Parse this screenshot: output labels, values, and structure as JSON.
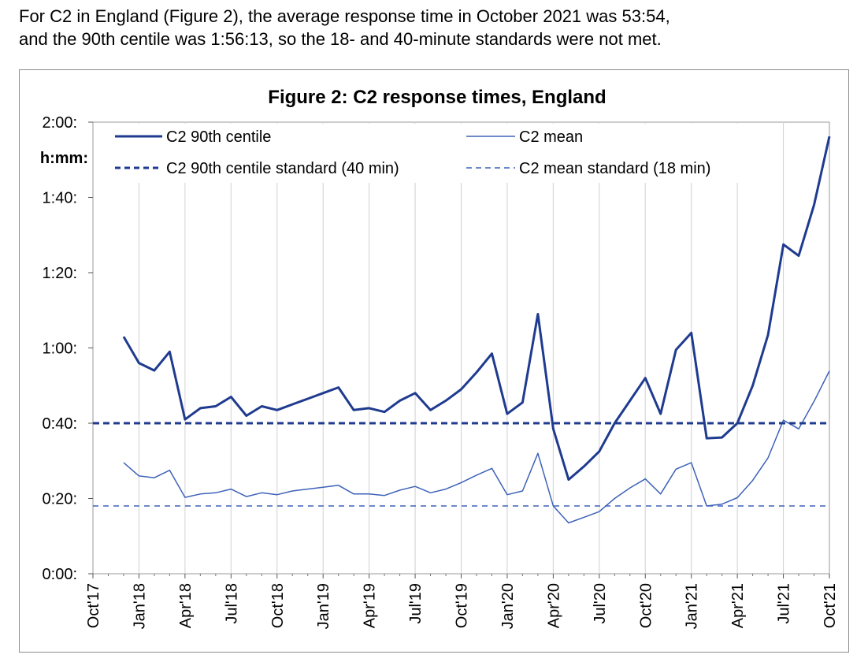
{
  "intro": {
    "line1": "For C2 in England (Figure 2), the average response time in October 2021 was 53:54,",
    "line2": "and the 90th centile was 1:56:13, so the 18- and 40-minute standards were not met."
  },
  "colors": {
    "dark": "#1f3b8f",
    "light": "#3d62b8",
    "grid": "#d0d0d0"
  },
  "chart_data": {
    "type": "line",
    "title": "Figure 2: C2 response times, England",
    "ylabel": "h:mm:",
    "ylim": [
      0,
      120
    ],
    "y_ticks": [
      0,
      20,
      40,
      60,
      80,
      100,
      120
    ],
    "y_tick_labels": [
      "0:00:",
      "0:20:",
      "0:40:",
      "1:00:",
      "1:20:",
      "1:40:",
      "2:00:"
    ],
    "x_tick_labels": [
      "Oct'17",
      "Jan'18",
      "Apr'18",
      "Jul'18",
      "Oct'18",
      "Jan'19",
      "Apr'19",
      "Jul'19",
      "Oct'19",
      "Jan'20",
      "Apr'20",
      "Jul'20",
      "Oct'20",
      "Jan'21",
      "Apr'21",
      "Jul'21",
      "Oct'21"
    ],
    "x_count": 49,
    "grid": "vertical",
    "series": [
      {
        "name": "C2 90th centile",
        "style": "thick-solid",
        "values": [
          null,
          null,
          63,
          56,
          54,
          59,
          41,
          44,
          44.5,
          47,
          42,
          44.5,
          43.5,
          45,
          46.5,
          48,
          49.5,
          43.5,
          44,
          43,
          46,
          48,
          43.5,
          46,
          49,
          53.5,
          58.5,
          42.5,
          45.5,
          69,
          38.5,
          25,
          28.5,
          32.5,
          40,
          46,
          52,
          42.5,
          59.5,
          64,
          36,
          36.2,
          40,
          50,
          63.5,
          87.5,
          84.5,
          98,
          116.2
        ]
      },
      {
        "name": "C2 mean",
        "style": "thin-solid",
        "values": [
          null,
          null,
          29.5,
          26,
          25.5,
          27.5,
          20.3,
          21.2,
          21.5,
          22.5,
          20.5,
          21.5,
          21,
          22,
          22.5,
          23,
          23.5,
          21.2,
          21.2,
          20.8,
          22.2,
          23.2,
          21.5,
          22.5,
          24.2,
          26.2,
          28,
          21,
          22,
          32,
          18,
          13.5,
          15,
          16.5,
          20,
          22.8,
          25.2,
          21.2,
          27.8,
          29.5,
          18,
          18.5,
          20.2,
          24.8,
          30.8,
          40.8,
          38.5,
          45.8,
          53.9
        ]
      },
      {
        "name": "C2 90th centile standard (40 min)",
        "style": "thick-dashed",
        "value": 40
      },
      {
        "name": "C2 mean standard (18 min)",
        "style": "thin-dashed",
        "value": 18
      }
    ],
    "legend": [
      "C2 90th centile",
      "C2 mean",
      "C2 90th centile standard (40 min)",
      "C2 mean standard (18 min)"
    ],
    "legend_position": "top"
  }
}
